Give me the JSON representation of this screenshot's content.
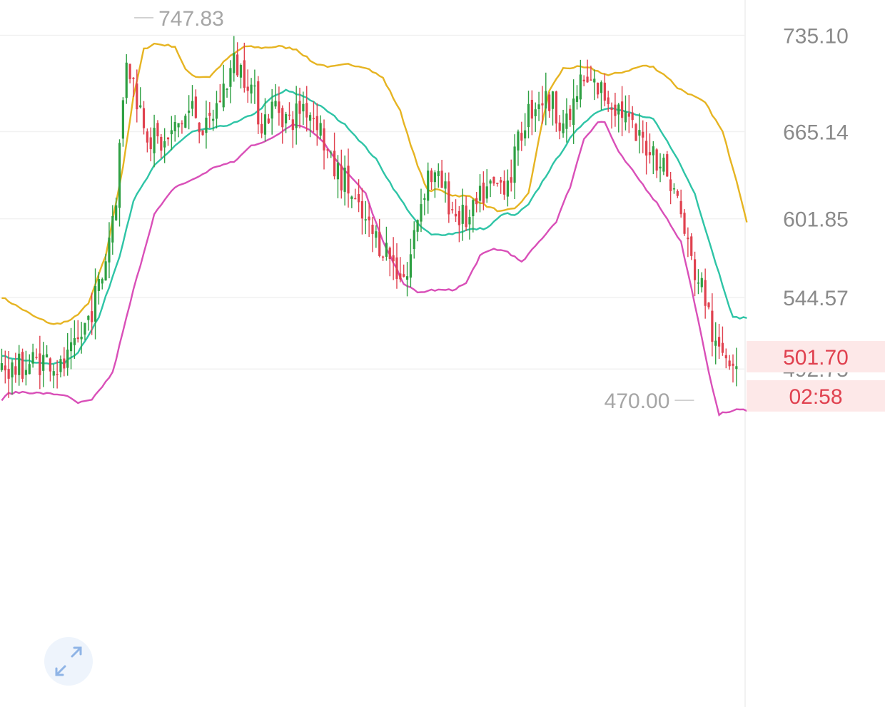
{
  "chart_data": {
    "type": "candlestick",
    "y_axis_ticks": [
      "735.10",
      "665.14",
      "601.85",
      "544.57"
    ],
    "y_axis_tick_values": [
      735.1,
      665.14,
      601.85,
      544.57
    ],
    "ylim": [
      455,
      760
    ],
    "high_marker": {
      "label": "747.83",
      "value": 747.83
    },
    "low_marker": {
      "label": "470.00",
      "value": 470.0
    },
    "last_price": {
      "label": "501.70",
      "value": 501.7,
      "color": "#e0414f"
    },
    "hidden_price_label": "492.75",
    "countdown": "02:58",
    "grid": true,
    "legend": "none",
    "colors": {
      "up": "#2ea043",
      "down": "#e0414f",
      "boll_upper": "#e6b422",
      "boll_mid": "#2ec4a6",
      "boll_lower": "#d94fb8",
      "grid": "#f1f1f1",
      "tag_bg": "#fde8e8"
    },
    "bollinger": {
      "upper_anchors": [
        [
          0,
          545
        ],
        [
          10,
          530
        ],
        [
          15,
          525
        ],
        [
          20,
          528
        ],
        [
          25,
          540
        ],
        [
          30,
          575
        ],
        [
          35,
          640
        ],
        [
          38,
          690
        ],
        [
          41,
          725
        ],
        [
          44,
          729
        ],
        [
          47,
          728
        ],
        [
          50,
          727
        ],
        [
          53,
          710
        ],
        [
          56,
          705
        ],
        [
          60,
          705
        ],
        [
          65,
          718
        ],
        [
          70,
          727
        ],
        [
          75,
          726
        ],
        [
          80,
          727
        ],
        [
          85,
          725
        ],
        [
          90,
          715
        ],
        [
          95,
          712
        ],
        [
          100,
          714
        ],
        [
          105,
          712
        ],
        [
          110,
          704
        ],
        [
          115,
          680
        ],
        [
          120,
          640
        ],
        [
          123,
          622
        ],
        [
          126,
          623
        ],
        [
          130,
          619
        ],
        [
          135,
          618
        ],
        [
          140,
          611
        ],
        [
          144,
          607
        ],
        [
          148,
          609
        ],
        [
          152,
          620
        ],
        [
          155,
          660
        ],
        [
          158,
          695
        ],
        [
          162,
          711
        ],
        [
          166,
          712
        ],
        [
          170,
          711
        ],
        [
          175,
          706
        ],
        [
          180,
          709
        ],
        [
          185,
          713
        ],
        [
          188,
          712
        ],
        [
          192,
          705
        ],
        [
          195,
          697
        ],
        [
          198,
          693
        ],
        [
          203,
          686
        ],
        [
          208,
          665
        ],
        [
          212,
          630
        ],
        [
          215,
          600
        ]
      ],
      "mid_anchors": [
        [
          0,
          502
        ],
        [
          5,
          500
        ],
        [
          10,
          497
        ],
        [
          18,
          497
        ],
        [
          22,
          505
        ],
        [
          28,
          530
        ],
        [
          34,
          575
        ],
        [
          38,
          615
        ],
        [
          44,
          640
        ],
        [
          50,
          655
        ],
        [
          55,
          665
        ],
        [
          62,
          668
        ],
        [
          68,
          672
        ],
        [
          74,
          680
        ],
        [
          78,
          690
        ],
        [
          82,
          695
        ],
        [
          88,
          690
        ],
        [
          94,
          680
        ],
        [
          100,
          668
        ],
        [
          108,
          645
        ],
        [
          114,
          620
        ],
        [
          120,
          598
        ],
        [
          124,
          590
        ],
        [
          130,
          591
        ],
        [
          135,
          594
        ],
        [
          140,
          595
        ],
        [
          145,
          606
        ],
        [
          148,
          604
        ],
        [
          152,
          612
        ],
        [
          158,
          637
        ],
        [
          164,
          660
        ],
        [
          168,
          672
        ],
        [
          172,
          680
        ],
        [
          176,
          683
        ],
        [
          182,
          678
        ],
        [
          188,
          674
        ],
        [
          194,
          650
        ],
        [
          200,
          620
        ],
        [
          206,
          570
        ],
        [
          211,
          530
        ]
      ],
      "lower_anchors": [
        [
          0,
          470
        ],
        [
          2,
          475
        ],
        [
          6,
          476
        ],
        [
          12,
          475
        ],
        [
          18,
          474
        ],
        [
          22,
          468
        ],
        [
          26,
          470
        ],
        [
          32,
          490
        ],
        [
          38,
          550
        ],
        [
          44,
          605
        ],
        [
          50,
          625
        ],
        [
          55,
          630
        ],
        [
          62,
          640
        ],
        [
          67,
          643
        ],
        [
          72,
          655
        ],
        [
          78,
          660
        ],
        [
          84,
          671
        ],
        [
          88,
          668
        ],
        [
          92,
          660
        ],
        [
          98,
          640
        ],
        [
          105,
          620
        ],
        [
          110,
          585
        ],
        [
          116,
          555
        ],
        [
          120,
          548
        ],
        [
          124,
          550
        ],
        [
          130,
          550
        ],
        [
          134,
          555
        ],
        [
          138,
          575
        ],
        [
          142,
          580
        ],
        [
          146,
          578
        ],
        [
          150,
          570
        ],
        [
          155,
          585
        ],
        [
          160,
          600
        ],
        [
          164,
          625
        ],
        [
          168,
          660
        ],
        [
          172,
          672
        ],
        [
          174,
          672
        ],
        [
          178,
          650
        ],
        [
          184,
          630
        ],
        [
          190,
          610
        ],
        [
          196,
          585
        ],
        [
          200,
          540
        ],
        [
          204,
          490
        ],
        [
          207,
          460
        ],
        [
          212,
          463
        ]
      ]
    },
    "price_anchors": [
      [
        0,
        495
      ],
      [
        5,
        492
      ],
      [
        10,
        498
      ],
      [
        15,
        500
      ],
      [
        18,
        492
      ],
      [
        22,
        505
      ],
      [
        26,
        530
      ],
      [
        30,
        560
      ],
      [
        34,
        620
      ],
      [
        37,
        720
      ],
      [
        40,
        690
      ],
      [
        44,
        660
      ],
      [
        48,
        655
      ],
      [
        52,
        670
      ],
      [
        56,
        682
      ],
      [
        60,
        665
      ],
      [
        64,
        690
      ],
      [
        68,
        715
      ],
      [
        72,
        705
      ],
      [
        76,
        672
      ],
      [
        80,
        685
      ],
      [
        84,
        672
      ],
      [
        88,
        685
      ],
      [
        92,
        675
      ],
      [
        96,
        640
      ],
      [
        100,
        630
      ],
      [
        104,
        605
      ],
      [
        108,
        590
      ],
      [
        112,
        580
      ],
      [
        115,
        565
      ],
      [
        118,
        560
      ],
      [
        121,
        605
      ],
      [
        124,
        635
      ],
      [
        128,
        625
      ],
      [
        132,
        605
      ],
      [
        136,
        600
      ],
      [
        140,
        620
      ],
      [
        144,
        625
      ],
      [
        148,
        635
      ],
      [
        152,
        675
      ],
      [
        156,
        690
      ],
      [
        160,
        685
      ],
      [
        164,
        668
      ],
      [
        168,
        700
      ],
      [
        172,
        698
      ],
      [
        176,
        690
      ],
      [
        180,
        680
      ],
      [
        184,
        660
      ],
      [
        188,
        655
      ],
      [
        192,
        640
      ],
      [
        196,
        615
      ],
      [
        200,
        570
      ],
      [
        204,
        545
      ],
      [
        207,
        505
      ],
      [
        210,
        505
      ],
      [
        213,
        502
      ]
    ]
  }
}
